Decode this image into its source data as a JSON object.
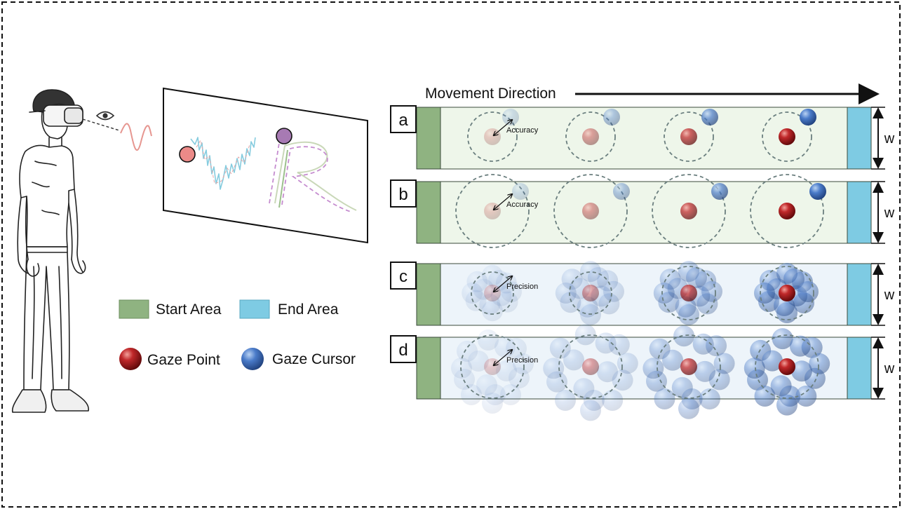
{
  "header": {
    "movement_label": "Movement Direction"
  },
  "legend": {
    "start_area": "Start Area",
    "end_area": "End Area",
    "gaze_point": "Gaze Point",
    "gaze_cursor": "Gaze Cursor"
  },
  "panels": [
    {
      "letter": "a",
      "annotation": "Accuracy",
      "width_label": "w"
    },
    {
      "letter": "b",
      "annotation": "Accuracy",
      "width_label": "w"
    },
    {
      "letter": "c",
      "annotation": "Precision",
      "width_label": "w"
    },
    {
      "letter": "d",
      "annotation": "Precision",
      "width_label": "w"
    }
  ],
  "colors": {
    "start_area": "#8fb381",
    "end_area": "#7ecbe3",
    "gaze_point": "#b3171b",
    "gaze_cursor": "#3f6fc4",
    "strip_green": "#eef6ea",
    "strip_blue": "#edf4fa"
  },
  "icons": [
    "vr-user-illustration",
    "eye-icon",
    "gaze-signal-wave",
    "arrow-right-icon",
    "double-arrow-icon"
  ]
}
